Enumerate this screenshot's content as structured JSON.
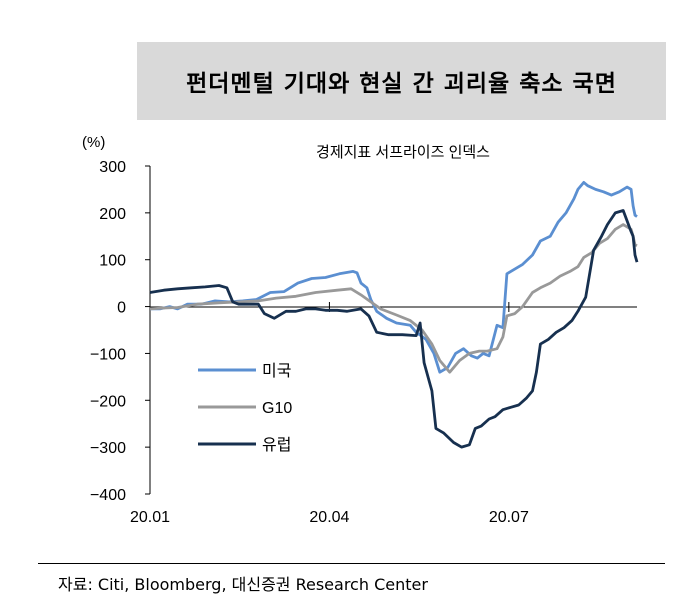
{
  "header": {
    "title": "펀더멘털 기대와 현실 간 괴리율 축소 국면"
  },
  "footer": {
    "source": "자료: Citi, Bloomberg, 대신증권 Research Center"
  },
  "chart_data": {
    "type": "line",
    "title": "경제지표 서프라이즈 인덱스",
    "ylabel": "(%)",
    "xlabel": "",
    "ylim": [
      -400,
      300
    ],
    "yticks": [
      300,
      200,
      100,
      0,
      -100,
      -200,
      -300,
      -400
    ],
    "ytick_labels": [
      "300",
      "200",
      "100",
      "0",
      "−100",
      "−200",
      "−300",
      "−400"
    ],
    "xticks": [
      "20.01",
      "20.04",
      "20.07"
    ],
    "xlim": [
      "2020-01-01",
      "2020-09-04"
    ],
    "legend_position": "lower-left",
    "zero_line": true,
    "series": [
      {
        "name": "미국",
        "color": "#5b8fd1",
        "points": [
          [
            "2020-01-01",
            -5
          ],
          [
            "2020-01-06",
            -5
          ],
          [
            "2020-01-11",
            0
          ],
          [
            "2020-01-15",
            -5
          ],
          [
            "2020-01-20",
            5
          ],
          [
            "2020-01-27",
            5
          ],
          [
            "2020-02-03",
            12
          ],
          [
            "2020-02-10",
            10
          ],
          [
            "2020-02-17",
            12
          ],
          [
            "2020-02-24",
            15
          ],
          [
            "2020-03-02",
            30
          ],
          [
            "2020-03-09",
            32
          ],
          [
            "2020-03-16",
            50
          ],
          [
            "2020-03-23",
            60
          ],
          [
            "2020-03-30",
            62
          ],
          [
            "2020-04-06",
            70
          ],
          [
            "2020-04-13",
            75
          ],
          [
            "2020-04-15",
            72
          ],
          [
            "2020-04-17",
            50
          ],
          [
            "2020-04-20",
            40
          ],
          [
            "2020-04-22",
            15
          ],
          [
            "2020-04-25",
            -10
          ],
          [
            "2020-04-30",
            -25
          ],
          [
            "2020-05-05",
            -35
          ],
          [
            "2020-05-12",
            -40
          ],
          [
            "2020-05-15",
            -55
          ],
          [
            "2020-05-20",
            -70
          ],
          [
            "2020-05-24",
            -100
          ],
          [
            "2020-05-27",
            -140
          ],
          [
            "2020-05-31",
            -130
          ],
          [
            "2020-06-04",
            -100
          ],
          [
            "2020-06-08",
            -90
          ],
          [
            "2020-06-12",
            -105
          ],
          [
            "2020-06-15",
            -110
          ],
          [
            "2020-06-18",
            -100
          ],
          [
            "2020-06-21",
            -105
          ],
          [
            "2020-06-25",
            -40
          ],
          [
            "2020-06-28",
            -45
          ],
          [
            "2020-06-30",
            70
          ],
          [
            "2020-07-04",
            80
          ],
          [
            "2020-07-08",
            90
          ],
          [
            "2020-07-13",
            110
          ],
          [
            "2020-07-17",
            140
          ],
          [
            "2020-07-22",
            150
          ],
          [
            "2020-07-26",
            180
          ],
          [
            "2020-07-30",
            200
          ],
          [
            "2020-08-03",
            230
          ],
          [
            "2020-08-05",
            250
          ],
          [
            "2020-08-08",
            265
          ],
          [
            "2020-08-10",
            258
          ],
          [
            "2020-08-14",
            250
          ],
          [
            "2020-08-18",
            245
          ],
          [
            "2020-08-22",
            238
          ],
          [
            "2020-08-26",
            245
          ],
          [
            "2020-08-30",
            255
          ],
          [
            "2020-09-01",
            250
          ],
          [
            "2020-09-02",
            215
          ],
          [
            "2020-09-03",
            195
          ],
          [
            "2020-09-04",
            192
          ]
        ]
      },
      {
        "name": "G10",
        "color": "#999999",
        "points": [
          [
            "2020-01-01",
            -5
          ],
          [
            "2020-01-08",
            -3
          ],
          [
            "2020-01-15",
            -2
          ],
          [
            "2020-01-25",
            5
          ],
          [
            "2020-02-05",
            8
          ],
          [
            "2020-02-15",
            10
          ],
          [
            "2020-02-25",
            12
          ],
          [
            "2020-03-05",
            18
          ],
          [
            "2020-03-15",
            22
          ],
          [
            "2020-03-25",
            30
          ],
          [
            "2020-04-05",
            35
          ],
          [
            "2020-04-12",
            38
          ],
          [
            "2020-04-17",
            25
          ],
          [
            "2020-04-22",
            10
          ],
          [
            "2020-04-27",
            -5
          ],
          [
            "2020-05-05",
            -18
          ],
          [
            "2020-05-12",
            -30
          ],
          [
            "2020-05-18",
            -50
          ],
          [
            "2020-05-23",
            -80
          ],
          [
            "2020-05-27",
            -115
          ],
          [
            "2020-06-01",
            -140
          ],
          [
            "2020-06-06",
            -115
          ],
          [
            "2020-06-11",
            -100
          ],
          [
            "2020-06-16",
            -95
          ],
          [
            "2020-06-20",
            -95
          ],
          [
            "2020-06-25",
            -90
          ],
          [
            "2020-06-28",
            -65
          ],
          [
            "2020-06-30",
            -20
          ],
          [
            "2020-07-04",
            -15
          ],
          [
            "2020-07-08",
            0
          ],
          [
            "2020-07-13",
            30
          ],
          [
            "2020-07-17",
            40
          ],
          [
            "2020-07-22",
            50
          ],
          [
            "2020-07-27",
            65
          ],
          [
            "2020-08-01",
            75
          ],
          [
            "2020-08-05",
            85
          ],
          [
            "2020-08-08",
            105
          ],
          [
            "2020-08-12",
            115
          ],
          [
            "2020-08-16",
            135
          ],
          [
            "2020-08-20",
            145
          ],
          [
            "2020-08-24",
            165
          ],
          [
            "2020-08-28",
            175
          ],
          [
            "2020-09-01",
            165
          ],
          [
            "2020-09-02",
            150
          ],
          [
            "2020-09-03",
            132
          ],
          [
            "2020-09-04",
            130
          ]
        ]
      },
      {
        "name": "유럽",
        "color": "#17304f",
        "points": [
          [
            "2020-01-01",
            30
          ],
          [
            "2020-01-08",
            35
          ],
          [
            "2020-01-15",
            38
          ],
          [
            "2020-01-22",
            40
          ],
          [
            "2020-01-29",
            42
          ],
          [
            "2020-02-05",
            45
          ],
          [
            "2020-02-09",
            40
          ],
          [
            "2020-02-12",
            10
          ],
          [
            "2020-02-15",
            5
          ],
          [
            "2020-02-20",
            5
          ],
          [
            "2020-02-25",
            5
          ],
          [
            "2020-02-28",
            -15
          ],
          [
            "2020-03-04",
            -25
          ],
          [
            "2020-03-10",
            -10
          ],
          [
            "2020-03-15",
            -10
          ],
          [
            "2020-03-20",
            -5
          ],
          [
            "2020-03-25",
            -5
          ],
          [
            "2020-03-30",
            -8
          ],
          [
            "2020-04-05",
            -8
          ],
          [
            "2020-04-10",
            -10
          ],
          [
            "2020-04-17",
            -5
          ],
          [
            "2020-04-21",
            -20
          ],
          [
            "2020-04-25",
            -55
          ],
          [
            "2020-05-01",
            -60
          ],
          [
            "2020-05-08",
            -60
          ],
          [
            "2020-05-15",
            -62
          ],
          [
            "2020-05-17",
            -35
          ],
          [
            "2020-05-19",
            -120
          ],
          [
            "2020-05-23",
            -180
          ],
          [
            "2020-05-25",
            -260
          ],
          [
            "2020-05-29",
            -270
          ],
          [
            "2020-06-03",
            -290
          ],
          [
            "2020-06-07",
            -300
          ],
          [
            "2020-06-11",
            -295
          ],
          [
            "2020-06-14",
            -260
          ],
          [
            "2020-06-17",
            -255
          ],
          [
            "2020-06-21",
            -240
          ],
          [
            "2020-06-24",
            -235
          ],
          [
            "2020-06-28",
            -220
          ],
          [
            "2020-07-02",
            -215
          ],
          [
            "2020-07-06",
            -210
          ],
          [
            "2020-07-10",
            -195
          ],
          [
            "2020-07-13",
            -180
          ],
          [
            "2020-07-15",
            -140
          ],
          [
            "2020-07-17",
            -80
          ],
          [
            "2020-07-21",
            -70
          ],
          [
            "2020-07-25",
            -55
          ],
          [
            "2020-07-29",
            -45
          ],
          [
            "2020-08-02",
            -30
          ],
          [
            "2020-08-05",
            -10
          ],
          [
            "2020-08-09",
            20
          ],
          [
            "2020-08-13",
            120
          ],
          [
            "2020-08-17",
            150
          ],
          [
            "2020-08-20",
            175
          ],
          [
            "2020-08-24",
            200
          ],
          [
            "2020-08-28",
            205
          ],
          [
            "2020-09-01",
            160
          ],
          [
            "2020-09-02",
            150
          ],
          [
            "2020-09-03",
            110
          ],
          [
            "2020-09-04",
            95
          ]
        ]
      }
    ]
  }
}
